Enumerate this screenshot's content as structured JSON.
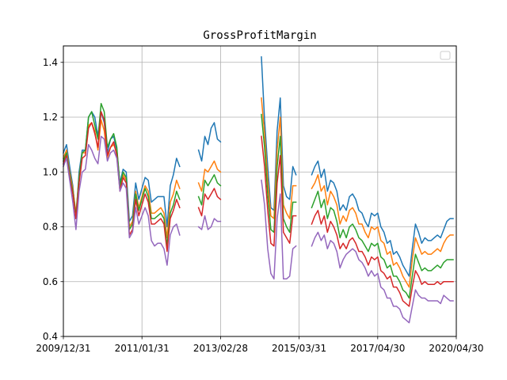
{
  "chart_data": {
    "type": "line",
    "title": "GrossProfitMargin",
    "xlabel": "",
    "ylabel": "",
    "xlim": [
      0,
      125
    ],
    "ylim": [
      0.4,
      1.46
    ],
    "grid": true,
    "legend": "top-right (empty box)",
    "x_tick_positions": [
      0,
      25,
      50,
      75,
      100,
      125
    ],
    "x_tick_labels": [
      "2009/12/31",
      "2011/01/31",
      "2013/02/28",
      "2015/03/31",
      "2017/04/30",
      "2020/04/30"
    ],
    "y_ticks": [
      0.4,
      0.6,
      0.8,
      1.0,
      1.2,
      1.4
    ],
    "y_tick_labels": [
      "0.4",
      "0.6",
      "0.8",
      "1.0",
      "1.2",
      "1.4"
    ],
    "segments": [
      {
        "x": [
          0,
          1,
          2,
          3,
          4,
          5,
          6,
          7,
          8,
          9,
          10,
          11,
          12,
          13,
          14,
          15,
          16,
          17,
          18,
          19,
          20,
          21,
          22,
          23,
          24,
          25,
          26,
          27,
          28,
          29,
          30,
          31,
          32,
          33,
          34,
          35,
          36,
          37
        ]
      },
      {
        "x": [
          43,
          44,
          45,
          46,
          47,
          48,
          49,
          50
        ]
      },
      {
        "x": [
          63,
          64,
          65,
          66,
          67,
          68,
          69,
          70,
          71,
          72,
          73,
          74
        ]
      },
      {
        "x": [
          79,
          80,
          81,
          82,
          83,
          84,
          85,
          86,
          87,
          88,
          89,
          90,
          91,
          92,
          93,
          94,
          95,
          96,
          97,
          98,
          99,
          100,
          101,
          102,
          103,
          104,
          105,
          106,
          107,
          108,
          109,
          110,
          111,
          112,
          113,
          114,
          115,
          116,
          117,
          118,
          119,
          120,
          121,
          122,
          123,
          124
        ]
      }
    ],
    "series": [
      {
        "color": "#1f77b4",
        "segments": [
          [
            1.07,
            1.1,
            1.02,
            0.95,
            0.83,
            1.0,
            1.08,
            1.08,
            1.2,
            1.22,
            1.2,
            1.13,
            1.22,
            1.18,
            1.07,
            1.12,
            1.13,
            1.08,
            0.96,
            1.01,
            1.0,
            0.82,
            0.84,
            0.96,
            0.9,
            0.94,
            0.98,
            0.97,
            0.89,
            0.9,
            0.91,
            0.91,
            0.91,
            0.8,
            0.95,
            0.99,
            1.05,
            1.02
          ],
          [
            1.08,
            1.04,
            1.13,
            1.1,
            1.16,
            1.18,
            1.12,
            1.11
          ],
          [
            1.42,
            1.19,
            1.02,
            0.87,
            0.86,
            1.15,
            1.27,
            0.95,
            0.91,
            0.9,
            1.02,
            0.99
          ],
          [
            0.99,
            1.02,
            1.04,
            0.98,
            1.01,
            0.93,
            0.97,
            0.96,
            0.93,
            0.86,
            0.88,
            0.86,
            0.91,
            0.92,
            0.9,
            0.86,
            0.85,
            0.82,
            0.8,
            0.85,
            0.84,
            0.85,
            0.8,
            0.78,
            0.74,
            0.75,
            0.7,
            0.71,
            0.69,
            0.66,
            0.64,
            0.62,
            0.72,
            0.81,
            0.78,
            0.74,
            0.76,
            0.75,
            0.75,
            0.76,
            0.77,
            0.76,
            0.79,
            0.82,
            0.83,
            0.83
          ]
        ]
      },
      {
        "color": "#ff7f0e",
        "segments": [
          [
            1.05,
            1.08,
            1.0,
            0.94,
            0.85,
            0.98,
            1.07,
            1.07,
            1.17,
            1.18,
            1.15,
            1.08,
            1.19,
            1.15,
            1.05,
            1.09,
            1.1,
            1.07,
            0.94,
            0.99,
            0.97,
            0.8,
            0.82,
            0.93,
            0.87,
            0.91,
            0.95,
            0.93,
            0.85,
            0.85,
            0.86,
            0.87,
            0.85,
            0.76,
            0.89,
            0.92,
            0.97,
            0.94
          ],
          [
            0.96,
            0.93,
            1.01,
            1.0,
            1.02,
            1.04,
            1.01,
            1.0
          ],
          [
            1.27,
            1.14,
            0.97,
            0.84,
            0.83,
            1.08,
            1.2,
            0.88,
            0.85,
            0.83,
            0.95,
            0.95
          ],
          [
            0.94,
            0.96,
            0.99,
            0.93,
            0.95,
            0.88,
            0.93,
            0.91,
            0.88,
            0.81,
            0.84,
            0.82,
            0.86,
            0.87,
            0.85,
            0.81,
            0.81,
            0.78,
            0.76,
            0.8,
            0.79,
            0.8,
            0.75,
            0.74,
            0.7,
            0.71,
            0.66,
            0.67,
            0.65,
            0.62,
            0.6,
            0.58,
            0.68,
            0.76,
            0.73,
            0.7,
            0.71,
            0.7,
            0.7,
            0.71,
            0.72,
            0.71,
            0.74,
            0.76,
            0.77,
            0.77
          ]
        ]
      },
      {
        "color": "#2ca02c",
        "segments": [
          [
            1.04,
            1.07,
            0.99,
            0.93,
            0.84,
            0.98,
            1.07,
            1.08,
            1.2,
            1.22,
            1.17,
            1.12,
            1.25,
            1.22,
            1.09,
            1.12,
            1.14,
            1.09,
            0.95,
            1.0,
            0.98,
            0.79,
            0.81,
            0.92,
            0.86,
            0.9,
            0.94,
            0.91,
            0.83,
            0.83,
            0.84,
            0.85,
            0.83,
            0.73,
            0.85,
            0.88,
            0.93,
            0.9
          ],
          [
            0.91,
            0.88,
            0.97,
            0.95,
            0.97,
            0.99,
            0.96,
            0.95
          ],
          [
            1.21,
            1.09,
            0.92,
            0.79,
            0.78,
            1.02,
            1.13,
            0.83,
            0.8,
            0.78,
            0.89,
            0.89
          ],
          [
            0.87,
            0.9,
            0.93,
            0.87,
            0.9,
            0.83,
            0.87,
            0.86,
            0.82,
            0.76,
            0.79,
            0.76,
            0.8,
            0.81,
            0.79,
            0.76,
            0.75,
            0.73,
            0.71,
            0.74,
            0.73,
            0.74,
            0.69,
            0.68,
            0.65,
            0.66,
            0.62,
            0.62,
            0.6,
            0.57,
            0.56,
            0.54,
            0.62,
            0.7,
            0.67,
            0.64,
            0.65,
            0.64,
            0.64,
            0.65,
            0.66,
            0.65,
            0.67,
            0.68,
            0.68,
            0.68
          ]
        ]
      },
      {
        "color": "#d62728",
        "segments": [
          [
            1.03,
            1.06,
            0.98,
            0.92,
            0.83,
            0.96,
            1.05,
            1.06,
            1.16,
            1.18,
            1.14,
            1.09,
            1.22,
            1.19,
            1.06,
            1.09,
            1.11,
            1.06,
            0.93,
            0.98,
            0.96,
            0.77,
            0.79,
            0.9,
            0.84,
            0.88,
            0.92,
            0.89,
            0.81,
            0.81,
            0.82,
            0.83,
            0.81,
            0.71,
            0.83,
            0.86,
            0.9,
            0.87
          ],
          [
            0.87,
            0.84,
            0.92,
            0.9,
            0.92,
            0.94,
            0.91,
            0.9
          ],
          [
            1.13,
            1.02,
            0.86,
            0.74,
            0.73,
            0.96,
            1.06,
            0.78,
            0.76,
            0.74,
            0.84,
            0.84
          ],
          [
            0.81,
            0.84,
            0.86,
            0.81,
            0.84,
            0.78,
            0.82,
            0.8,
            0.77,
            0.72,
            0.74,
            0.72,
            0.75,
            0.76,
            0.74,
            0.71,
            0.71,
            0.69,
            0.66,
            0.69,
            0.68,
            0.69,
            0.64,
            0.63,
            0.61,
            0.62,
            0.58,
            0.58,
            0.56,
            0.53,
            0.52,
            0.51,
            0.58,
            0.64,
            0.62,
            0.59,
            0.6,
            0.59,
            0.59,
            0.59,
            0.6,
            0.59,
            0.6,
            0.6,
            0.6,
            0.6
          ]
        ]
      },
      {
        "color": "#9467bd",
        "segments": [
          [
            1.02,
            1.05,
            0.97,
            0.89,
            0.79,
            0.93,
            1.0,
            1.01,
            1.1,
            1.08,
            1.05,
            1.03,
            1.13,
            1.12,
            1.04,
            1.07,
            1.08,
            1.05,
            0.93,
            0.96,
            0.94,
            0.76,
            0.78,
            0.87,
            0.81,
            0.84,
            0.87,
            0.84,
            0.75,
            0.73,
            0.74,
            0.74,
            0.72,
            0.66,
            0.77,
            0.8,
            0.81,
            0.77
          ],
          [
            0.8,
            0.79,
            0.84,
            0.79,
            0.8,
            0.83,
            0.82,
            0.82
          ],
          [
            0.97,
            0.88,
            0.72,
            0.63,
            0.61,
            0.83,
            0.92,
            0.61,
            0.61,
            0.62,
            0.72,
            0.73
          ],
          [
            0.73,
            0.76,
            0.78,
            0.75,
            0.77,
            0.72,
            0.75,
            0.74,
            0.71,
            0.65,
            0.68,
            0.7,
            0.71,
            0.72,
            0.71,
            0.68,
            0.67,
            0.65,
            0.62,
            0.64,
            0.62,
            0.63,
            0.58,
            0.57,
            0.54,
            0.54,
            0.51,
            0.51,
            0.5,
            0.47,
            0.46,
            0.45,
            0.51,
            0.57,
            0.55,
            0.54,
            0.54,
            0.53,
            0.53,
            0.53,
            0.53,
            0.52,
            0.55,
            0.54,
            0.53,
            0.53
          ]
        ]
      }
    ]
  }
}
